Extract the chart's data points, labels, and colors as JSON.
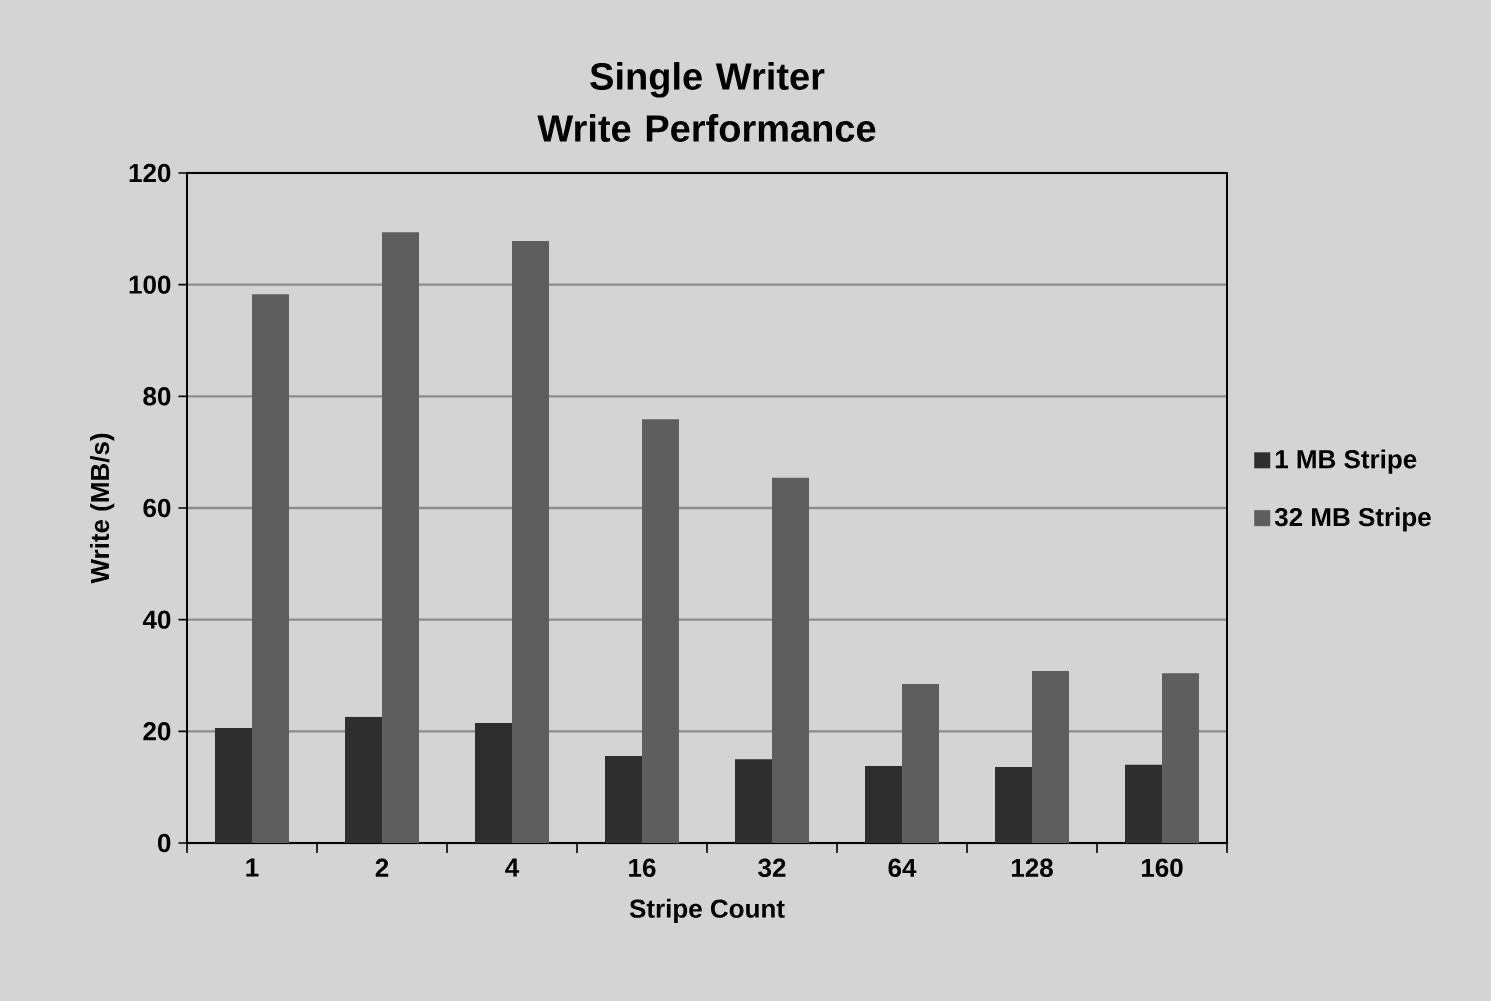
{
  "chart_data": {
    "type": "bar",
    "title": "Single Writer",
    "subtitle": "Write Performance",
    "xlabel": "Stripe Count",
    "ylabel": "Write (MB/s)",
    "categories": [
      "1",
      "2",
      "4",
      "16",
      "32",
      "64",
      "128",
      "160"
    ],
    "series": [
      {
        "name": "1 MB Stripe",
        "color": "#2e2e2e",
        "values": [
          20.6,
          22.6,
          21.5,
          15.6,
          15.0,
          13.8,
          13.6,
          14.0
        ]
      },
      {
        "name": "32 MB Stripe",
        "color": "#5e5e5e",
        "values": [
          98.3,
          109.4,
          107.8,
          75.9,
          65.4,
          28.5,
          30.8,
          30.4
        ]
      }
    ],
    "ylim": [
      0,
      120
    ],
    "yticks": [
      0,
      20,
      40,
      60,
      80,
      100,
      120
    ],
    "grid": "y",
    "legend": "right"
  }
}
